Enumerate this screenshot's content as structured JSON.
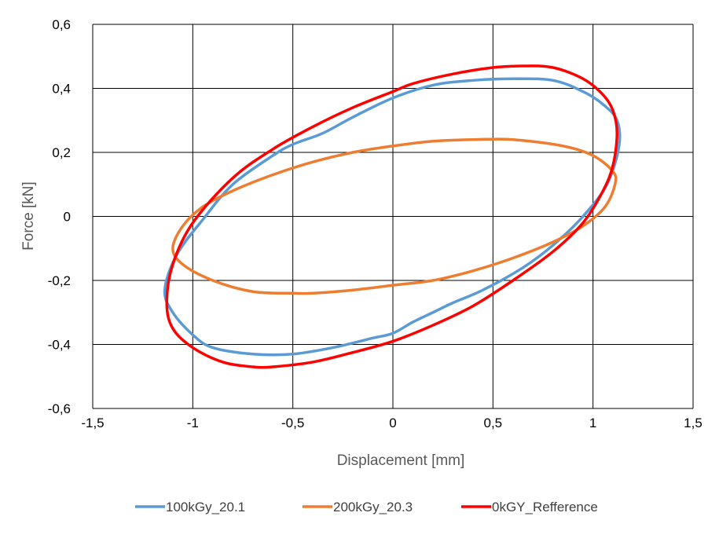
{
  "chart_data": {
    "type": "line",
    "xlabel": "Displacement [mm]",
    "ylabel": "Force [kN]",
    "xlim": [
      -1.5,
      1.5
    ],
    "ylim": [
      -0.6,
      0.6
    ],
    "xticks": [
      -1.5,
      -1,
      -0.5,
      0,
      0.5,
      1,
      1.5
    ],
    "yticks": [
      -0.6,
      -0.4,
      -0.2,
      0,
      0.2,
      0.4,
      0.6
    ],
    "xtick_labels": [
      "-1,5",
      "-1",
      "-0,5",
      "0",
      "0,5",
      "1",
      "1,5"
    ],
    "ytick_labels": [
      "-0,6",
      "-0,4",
      "-0,2",
      "0",
      "0,2",
      "0,4",
      "0,6"
    ],
    "grid": true,
    "legend_position": "bottom",
    "series": [
      {
        "name": "100kGy_20.1",
        "color": "#5B9BD5",
        "x": [
          -1.14,
          -1.1,
          -1.0,
          -0.9,
          -0.7,
          -0.5,
          -0.3,
          -0.1,
          0.0,
          0.1,
          0.2,
          0.3,
          0.45,
          0.65,
          0.8,
          0.95,
          1.07,
          1.13,
          1.12,
          1.05,
          0.95,
          0.8,
          0.6,
          0.4,
          0.2,
          0.0,
          -0.2,
          -0.35,
          -0.5,
          -0.6,
          -0.8,
          -0.95,
          -1.08,
          -1.14
        ],
        "y": [
          -0.23,
          -0.3,
          -0.37,
          -0.41,
          -0.43,
          -0.43,
          -0.41,
          -0.38,
          -0.365,
          -0.33,
          -0.3,
          -0.27,
          -0.23,
          -0.16,
          -0.09,
          0.0,
          0.1,
          0.22,
          0.3,
          0.35,
          0.39,
          0.425,
          0.43,
          0.425,
          0.41,
          0.37,
          0.31,
          0.26,
          0.225,
          0.19,
          0.1,
          -0.01,
          -0.12,
          -0.23
        ]
      },
      {
        "name": "200kGy_20.3",
        "color": "#ED7D31",
        "x": [
          -1.1,
          -1.05,
          -0.9,
          -0.7,
          -0.5,
          -0.4,
          -0.2,
          0.0,
          0.2,
          0.4,
          0.6,
          0.8,
          0.95,
          1.06,
          1.11,
          1.1,
          1.0,
          0.85,
          0.6,
          0.4,
          0.2,
          0.0,
          -0.2,
          -0.4,
          -0.6,
          -0.8,
          -0.95,
          -1.05,
          -1.1
        ],
        "y": [
          -0.1,
          -0.15,
          -0.2,
          -0.235,
          -0.24,
          -0.24,
          -0.23,
          -0.215,
          -0.2,
          -0.17,
          -0.13,
          -0.08,
          -0.03,
          0.03,
          0.1,
          0.14,
          0.19,
          0.22,
          0.24,
          0.24,
          0.235,
          0.22,
          0.2,
          0.17,
          0.13,
          0.08,
          0.03,
          -0.03,
          -0.1
        ]
      },
      {
        "name": "0kGY_Refference",
        "color": "#FF0000",
        "x": [
          -1.13,
          -1.1,
          -1.0,
          -0.85,
          -0.7,
          -0.6,
          -0.4,
          -0.2,
          0.0,
          0.2,
          0.4,
          0.6,
          0.8,
          0.95,
          1.05,
          1.1,
          1.12,
          1.1,
          1.05,
          0.95,
          0.8,
          0.65,
          0.5,
          0.3,
          0.1,
          0.0,
          -0.2,
          -0.4,
          -0.6,
          -0.8,
          -1.0,
          -1.1,
          -1.13
        ],
        "y": [
          -0.27,
          -0.35,
          -0.41,
          -0.455,
          -0.47,
          -0.47,
          -0.455,
          -0.425,
          -0.39,
          -0.34,
          -0.28,
          -0.2,
          -0.11,
          -0.02,
          0.08,
          0.16,
          0.26,
          0.33,
          0.38,
          0.43,
          0.465,
          0.47,
          0.465,
          0.445,
          0.415,
          0.39,
          0.34,
          0.28,
          0.21,
          0.12,
          -0.02,
          -0.15,
          -0.27
        ]
      }
    ]
  }
}
